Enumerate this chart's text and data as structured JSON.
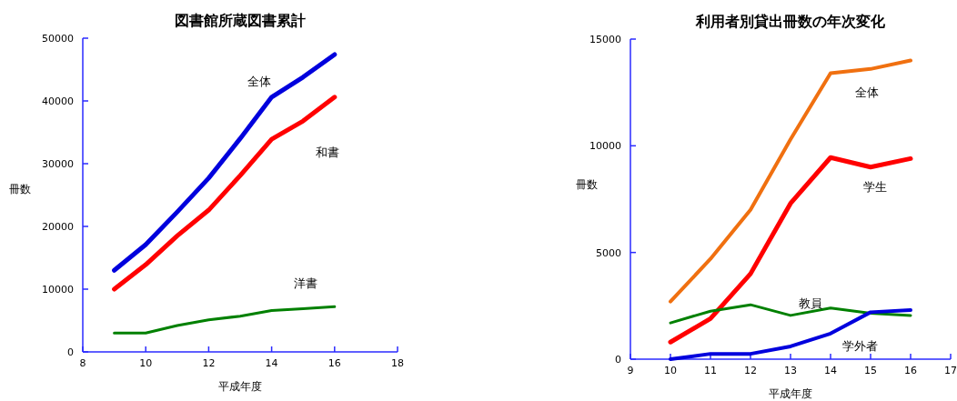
{
  "chart_data": [
    {
      "type": "line",
      "title": "図書館所蔵図書累計",
      "xlabel": "平成年度",
      "ylabel": "冊数",
      "x": [
        9,
        10,
        11,
        12,
        13,
        14,
        15,
        16
      ],
      "xlim": [
        8,
        18
      ],
      "xticks": [
        8,
        10,
        12,
        14,
        16,
        18
      ],
      "ylim": [
        0,
        50000
      ],
      "yticks": [
        0,
        10000,
        20000,
        30000,
        40000,
        50000
      ],
      "series": [
        {
          "name": "全体",
          "color": "#0000dd",
          "values": [
            13000,
            17100,
            22300,
            27700,
            34000,
            40600,
            43800,
            47400
          ]
        },
        {
          "name": "和書",
          "color": "#ff0000",
          "values": [
            10000,
            13900,
            18500,
            22600,
            28100,
            33900,
            36800,
            40600
          ]
        },
        {
          "name": "洋書",
          "color": "#008000",
          "values": [
            3000,
            3000,
            4200,
            5100,
            5700,
            6600,
            6900,
            7200
          ]
        }
      ]
    },
    {
      "type": "line",
      "title": "利用者別貸出冊数の年次変化",
      "xlabel": "平成年度",
      "ylabel": "冊数",
      "x": [
        10,
        11,
        12,
        13,
        14,
        15,
        16
      ],
      "xlim": [
        9,
        17
      ],
      "xticks": [
        9,
        10,
        11,
        12,
        13,
        14,
        15,
        16,
        17
      ],
      "ylim": [
        0,
        15000
      ],
      "yticks": [
        0,
        5000,
        10000,
        15000
      ],
      "series": [
        {
          "name": "全体",
          "color": "#f07010",
          "values": [
            2700,
            4700,
            7000,
            10300,
            13400,
            13600,
            14000
          ]
        },
        {
          "name": "学生",
          "color": "#ff0000",
          "values": [
            800,
            1900,
            4000,
            7300,
            9450,
            9000,
            9400
          ]
        },
        {
          "name": "教員",
          "color": "#008000",
          "values": [
            1700,
            2250,
            2550,
            2050,
            2400,
            2150,
            2050
          ]
        },
        {
          "name": "学外者",
          "color": "#0000dd",
          "values": [
            0,
            250,
            250,
            600,
            1200,
            2200,
            2300
          ]
        }
      ]
    }
  ]
}
